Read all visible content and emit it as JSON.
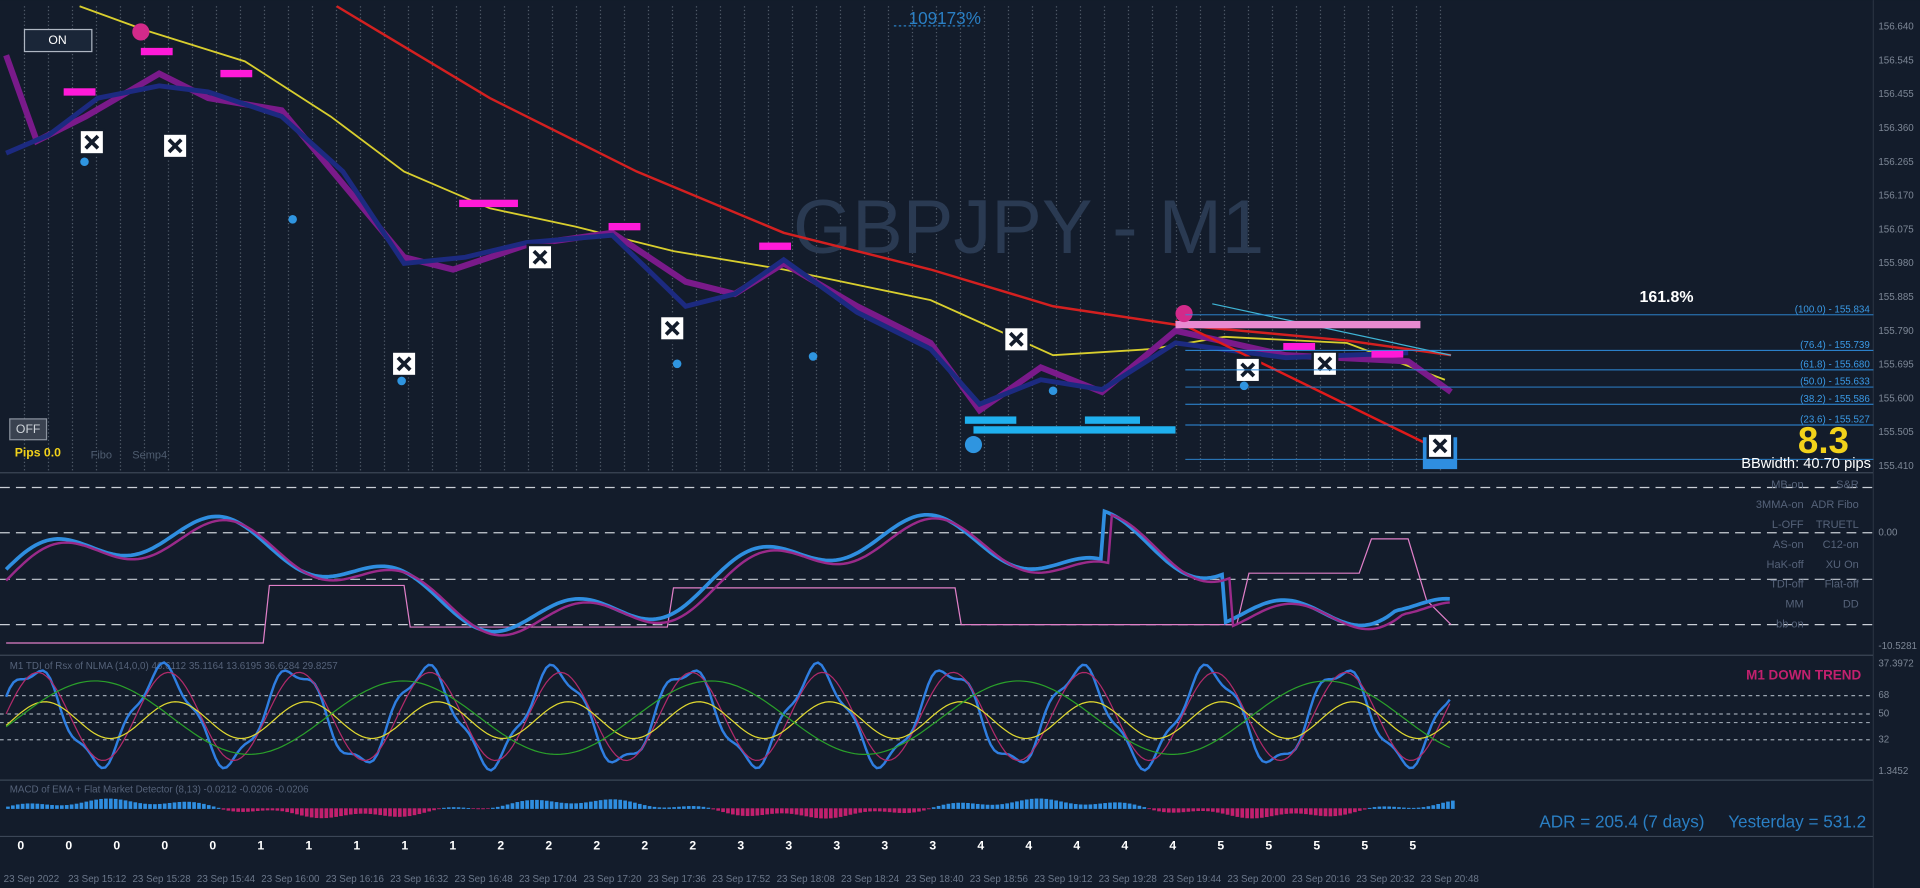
{
  "header": {
    "symbol_title": "GBPJPY - M1",
    "percent": "109173%"
  },
  "buttons": {
    "on": "ON",
    "off": "OFF"
  },
  "panel_info": {
    "pips": "Pips 0.0",
    "fibo": "Fibo",
    "semafor": "Semp4"
  },
  "fibonacci": {
    "extension": "161.8%",
    "levels": [
      "(100.0) - 155.834",
      "(76.4) - 155.739",
      "(61.8) - 155.680",
      "(50.0) - 155.633",
      "(38.2) - 155.586",
      "(23.6) - 155.527"
    ]
  },
  "bb": {
    "value": "8.3",
    "width": "BBwidth: 40.70 pips"
  },
  "price_axis": [
    "156.640",
    "156.545",
    "156.455",
    "156.360",
    "156.265",
    "156.170",
    "156.075",
    "155.980",
    "155.885",
    "155.790",
    "155.695",
    "155.600",
    "155.505",
    "155.410"
  ],
  "sub_axis": [
    "0.00",
    "-10.5281",
    "37.3972",
    "68",
    "50",
    "32",
    "1.3452"
  ],
  "toggles": [
    [
      "MB-on",
      "S&R"
    ],
    [
      "3MMA-on",
      "ADR Fibo"
    ],
    [
      "L-OFF",
      "TRUETL"
    ],
    [
      "AS-on",
      "C12-on"
    ],
    [
      "HaK-off",
      "XU On"
    ],
    [
      "TDI-off",
      "Flat-off"
    ],
    [
      "MM",
      "DD"
    ],
    [
      "bb on"
    ]
  ],
  "trend": "M1 DOWN TREND",
  "indicators": {
    "tdi_header": "M1 TDI of Rsx of NLMA (14,0,0) 46.6112 35.1164 13.6195 36.6284 29.8257",
    "macd_header": "MACD of EMA + Flat Market Detector (8,13) -0.0212 -0.0206 -0.0206"
  },
  "adr": {
    "adr": "ADR = 205.4  (7 days)",
    "yesterday": "Yesterday = 531.2"
  },
  "bar_counts": [
    0,
    0,
    0,
    0,
    0,
    1,
    1,
    1,
    1,
    1,
    2,
    2,
    2,
    2,
    2,
    3,
    3,
    3,
    3,
    3,
    4,
    4,
    4,
    4,
    4,
    5,
    5,
    5,
    5,
    5
  ],
  "time_axis": [
    "23 Sep 2022",
    "23 Sep 15:12",
    "23 Sep 15:28",
    "23 Sep 15:44",
    "23 Sep 16:00",
    "23 Sep 16:16",
    "23 Sep 16:32",
    "23 Sep 16:48",
    "23 Sep 17:04",
    "23 Sep 17:20",
    "23 Sep 17:36",
    "23 Sep 17:52",
    "23 Sep 18:08",
    "23 Sep 18:24",
    "23 Sep 18:40",
    "23 Sep 18:56",
    "23 Sep 19:12",
    "23 Sep 19:28",
    "23 Sep 19:44",
    "23 Sep 20:00",
    "23 Sep 20:16",
    "23 Sep 20:32",
    "23 Sep 20:48"
  ]
}
